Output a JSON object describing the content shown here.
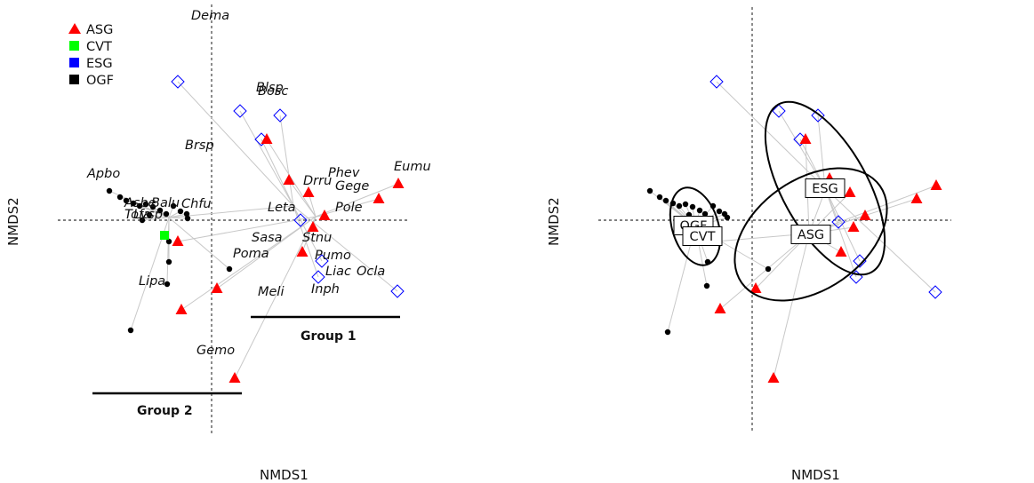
{
  "chart_data": [
    {
      "type": "scatter",
      "panel": "left",
      "xlabel": "NMDS1",
      "ylabel": "NMDS2",
      "legend": {
        "placement": "top-left",
        "entries": [
          {
            "name": "ASG",
            "color": "#ff0000"
          },
          {
            "name": "CVT",
            "color": "#00ff00"
          },
          {
            "name": "ESG",
            "color": "#0000ff"
          },
          {
            "name": "OGF",
            "color": "#000000"
          }
        ]
      },
      "groups": [
        "Group 1",
        "Group 2"
      ],
      "species": [
        "Dema",
        "Blsp",
        "Bosc",
        "Brsp",
        "Apbo",
        "Eumu",
        "Phev",
        "Drru",
        "Gege",
        "Asbe",
        "Balu",
        "Chfu",
        "Tofa",
        "Lysp",
        "Leta",
        "Pole",
        "Sasa",
        "Stnu",
        "Poma",
        "Pumo",
        "Liac",
        "Ocla",
        "Lipa",
        "Meli",
        "Inph",
        "Gemo"
      ]
    },
    {
      "type": "scatter",
      "panel": "right",
      "xlabel": "NMDS1",
      "ylabel": "NMDS2",
      "centroids": [
        "ESG",
        "OGF",
        "CVT",
        "ASG"
      ]
    }
  ]
}
